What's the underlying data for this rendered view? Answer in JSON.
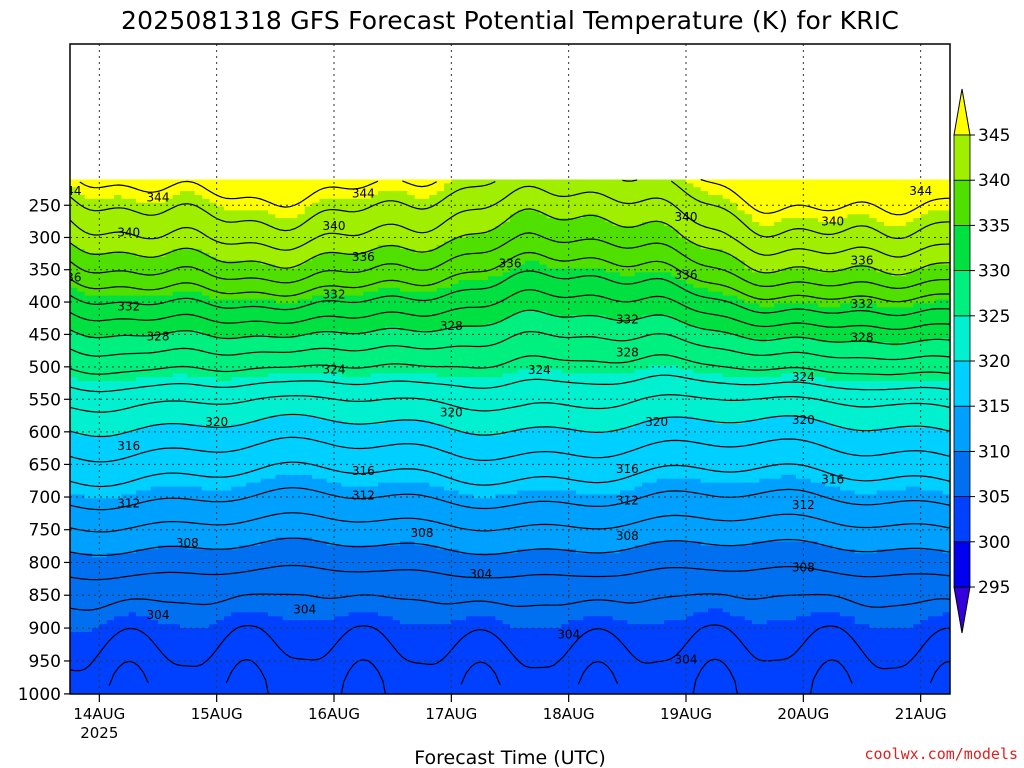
{
  "chart_data": {
    "type": "heatmap",
    "title": "2025081318 GFS Forecast Potential Temperature (K) for KRIC",
    "xlabel": "Forecast Time (UTC)",
    "ylabel": "",
    "credit": "coolwx.com/models",
    "y_axis": {
      "scale": "pressure",
      "unit": "hPa",
      "range": [
        1020,
        210
      ],
      "inverted": true
    },
    "y_ticks": [
      250,
      300,
      350,
      400,
      450,
      500,
      550,
      600,
      650,
      700,
      750,
      800,
      850,
      900,
      950,
      1000
    ],
    "y_tick_labels": [
      "250",
      "300",
      "350",
      "400",
      "450",
      "500",
      "550",
      "600",
      "650",
      "700",
      "750",
      "800",
      "850",
      "900",
      "950",
      "1000"
    ],
    "x_axis": {
      "start": "2025-08-13T18",
      "end": "2025-08-21T06",
      "step_hours": 6
    },
    "x_ticks": [
      {
        "time": "2025-08-14T00",
        "label": "14AUG",
        "sub": "2025"
      },
      {
        "time": "2025-08-15T00",
        "label": "15AUG"
      },
      {
        "time": "2025-08-16T00",
        "label": "16AUG"
      },
      {
        "time": "2025-08-17T00",
        "label": "17AUG"
      },
      {
        "time": "2025-08-18T00",
        "label": "18AUG"
      },
      {
        "time": "2025-08-19T00",
        "label": "19AUG"
      },
      {
        "time": "2025-08-20T00",
        "label": "20AUG"
      },
      {
        "time": "2025-08-21T00",
        "label": "21AUG"
      }
    ],
    "colorbar": {
      "levels": [
        295,
        300,
        305,
        310,
        315,
        320,
        325,
        330,
        335,
        340,
        345
      ],
      "labels": [
        "295",
        "300",
        "305",
        "310",
        "315",
        "320",
        "325",
        "330",
        "335",
        "340",
        "345"
      ],
      "colors": [
        "#3300dd",
        "#0000f0",
        "#0040ff",
        "#0070f0",
        "#00a0ff",
        "#00d0ff",
        "#00f0d0",
        "#00f080",
        "#00e040",
        "#50e000",
        "#a0ee00",
        "#ffff00"
      ],
      "extend": "both"
    },
    "contour_interval_K": 2,
    "contour_labels": [
      {
        "time": "2025-08-13T18",
        "p": 228,
        "value": "344"
      },
      {
        "time": "2025-08-14T12",
        "p": 238,
        "value": "344"
      },
      {
        "time": "2025-08-16T06",
        "p": 232,
        "value": "344"
      },
      {
        "time": "2025-08-21T00",
        "p": 228,
        "value": "344"
      },
      {
        "time": "2025-08-14T06",
        "p": 292,
        "value": "340"
      },
      {
        "time": "2025-08-16T00",
        "p": 282,
        "value": "340"
      },
      {
        "time": "2025-08-19T00",
        "p": 268,
        "value": "340"
      },
      {
        "time": "2025-08-20T06",
        "p": 275,
        "value": "340"
      },
      {
        "time": "2025-08-13T18",
        "p": 362,
        "value": "336"
      },
      {
        "time": "2025-08-16T06",
        "p": 330,
        "value": "336"
      },
      {
        "time": "2025-08-17T12",
        "p": 340,
        "value": "336"
      },
      {
        "time": "2025-08-19T00",
        "p": 358,
        "value": "336"
      },
      {
        "time": "2025-08-20T12",
        "p": 336,
        "value": "336"
      },
      {
        "time": "2025-08-14T06",
        "p": 407,
        "value": "332"
      },
      {
        "time": "2025-08-16T00",
        "p": 388,
        "value": "332"
      },
      {
        "time": "2025-08-18T12",
        "p": 427,
        "value": "332"
      },
      {
        "time": "2025-08-20T12",
        "p": 403,
        "value": "332"
      },
      {
        "time": "2025-08-14T12",
        "p": 453,
        "value": "328"
      },
      {
        "time": "2025-08-17T00",
        "p": 437,
        "value": "328"
      },
      {
        "time": "2025-08-18T12",
        "p": 478,
        "value": "328"
      },
      {
        "time": "2025-08-20T12",
        "p": 455,
        "value": "328"
      },
      {
        "time": "2025-08-16T00",
        "p": 504,
        "value": "324"
      },
      {
        "time": "2025-08-17T18",
        "p": 505,
        "value": "324"
      },
      {
        "time": "2025-08-20T00",
        "p": 516,
        "value": "324"
      },
      {
        "time": "2025-08-15T00",
        "p": 585,
        "value": "320"
      },
      {
        "time": "2025-08-17T00",
        "p": 570,
        "value": "320"
      },
      {
        "time": "2025-08-18T18",
        "p": 585,
        "value": "320"
      },
      {
        "time": "2025-08-20T00",
        "p": 582,
        "value": "320"
      },
      {
        "time": "2025-08-14T06",
        "p": 622,
        "value": "316"
      },
      {
        "time": "2025-08-16T06",
        "p": 660,
        "value": "316"
      },
      {
        "time": "2025-08-18T12",
        "p": 657,
        "value": "316"
      },
      {
        "time": "2025-08-20T06",
        "p": 673,
        "value": "316"
      },
      {
        "time": "2025-08-14T06",
        "p": 710,
        "value": "312"
      },
      {
        "time": "2025-08-16T06",
        "p": 698,
        "value": "312"
      },
      {
        "time": "2025-08-18T12",
        "p": 705,
        "value": "312"
      },
      {
        "time": "2025-08-20T00",
        "p": 712,
        "value": "312"
      },
      {
        "time": "2025-08-14T18",
        "p": 770,
        "value": "308"
      },
      {
        "time": "2025-08-16T18",
        "p": 755,
        "value": "308"
      },
      {
        "time": "2025-08-18T12",
        "p": 760,
        "value": "308"
      },
      {
        "time": "2025-08-20T00",
        "p": 808,
        "value": "308"
      },
      {
        "time": "2025-08-14T12",
        "p": 880,
        "value": "304"
      },
      {
        "time": "2025-08-15T18",
        "p": 872,
        "value": "304"
      },
      {
        "time": "2025-08-17T06",
        "p": 818,
        "value": "304"
      },
      {
        "time": "2025-08-18T00",
        "p": 910,
        "value": "304"
      },
      {
        "time": "2025-08-19T00",
        "p": 948,
        "value": "304"
      }
    ],
    "theta_profile": {
      "p": [
        210,
        250,
        300,
        350,
        400,
        450,
        500,
        550,
        600,
        650,
        700,
        750,
        800,
        850,
        900,
        950,
        1000,
        1020
      ],
      "theta": [
        345.5,
        343.2,
        340.5,
        337.0,
        333.0,
        329.2,
        325.8,
        322.2,
        319.4,
        316.8,
        314.2,
        311.4,
        308.8,
        306.2,
        304.6,
        303.6,
        302.8,
        302.6
      ]
    },
    "terrain": {
      "color": "#a0522d",
      "top_p": 1003
    }
  }
}
